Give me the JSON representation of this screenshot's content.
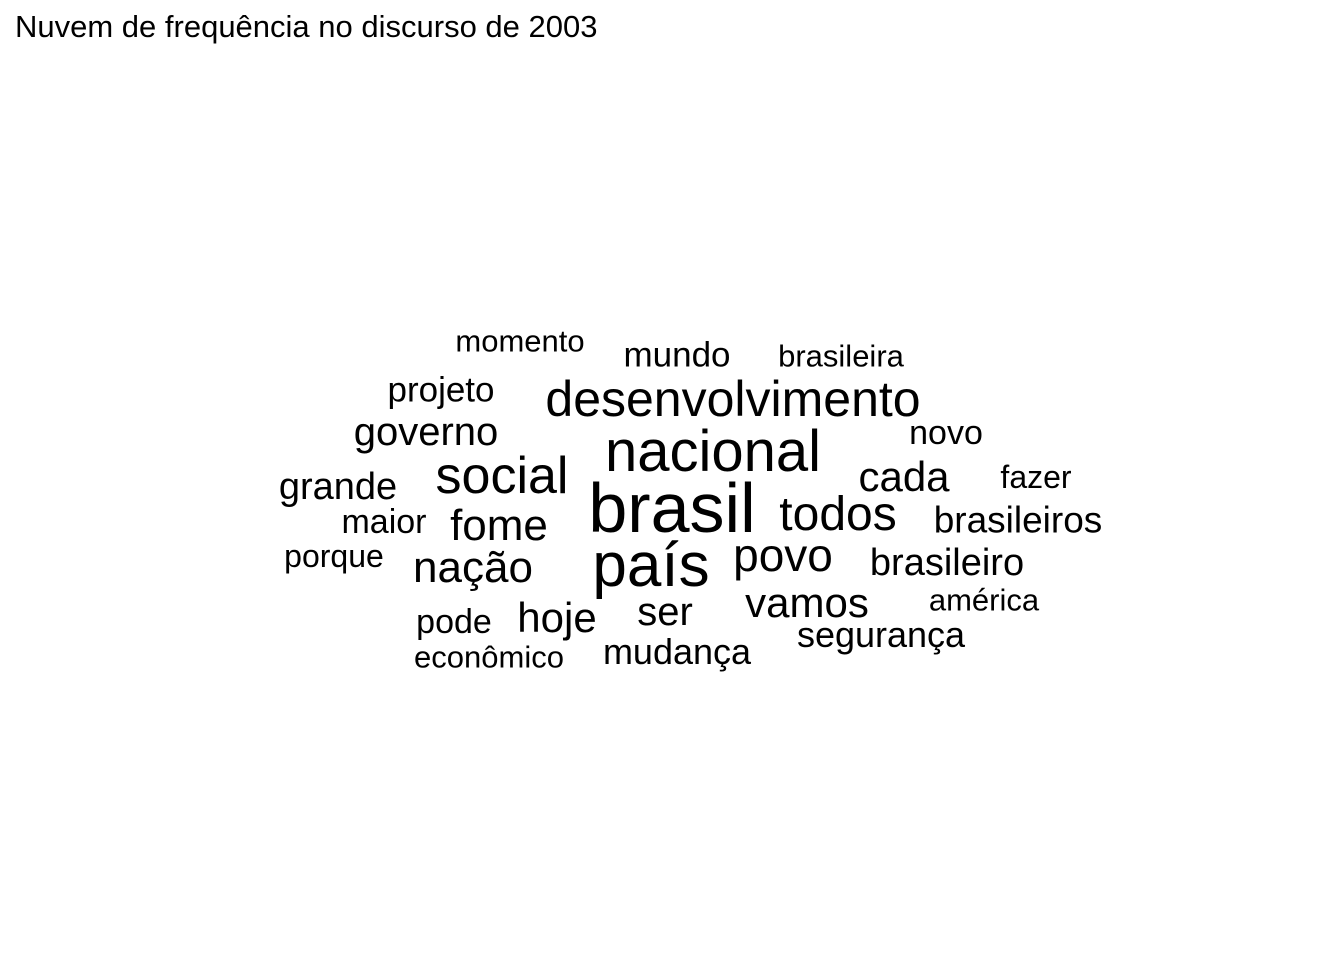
{
  "chart_data": {
    "type": "wordcloud",
    "title": "Nuvem de frequência no discurso de 2003",
    "words": [
      {
        "text": "brasil",
        "weight": 10
      },
      {
        "text": "país",
        "weight": 9
      },
      {
        "text": "nacional",
        "weight": 8
      },
      {
        "text": "social",
        "weight": 7
      },
      {
        "text": "desenvolvimento",
        "weight": 7
      },
      {
        "text": "todos",
        "weight": 7
      },
      {
        "text": "povo",
        "weight": 6
      },
      {
        "text": "nação",
        "weight": 6
      },
      {
        "text": "fome",
        "weight": 6
      },
      {
        "text": "cada",
        "weight": 6
      },
      {
        "text": "hoje",
        "weight": 5
      },
      {
        "text": "vamos",
        "weight": 5
      },
      {
        "text": "ser",
        "weight": 5
      },
      {
        "text": "governo",
        "weight": 5
      },
      {
        "text": "brasileiro",
        "weight": 5
      },
      {
        "text": "brasileiros",
        "weight": 5
      },
      {
        "text": "grande",
        "weight": 5
      },
      {
        "text": "mudança",
        "weight": 4
      },
      {
        "text": "segurança",
        "weight": 4
      },
      {
        "text": "projeto",
        "weight": 4
      },
      {
        "text": "mundo",
        "weight": 4
      },
      {
        "text": "novo",
        "weight": 4
      },
      {
        "text": "maior",
        "weight": 4
      },
      {
        "text": "pode",
        "weight": 4
      },
      {
        "text": "fazer",
        "weight": 4
      },
      {
        "text": "brasileira",
        "weight": 3
      },
      {
        "text": "momento",
        "weight": 3
      },
      {
        "text": "américa",
        "weight": 3
      },
      {
        "text": "porque",
        "weight": 3
      },
      {
        "text": "econômico",
        "weight": 3
      }
    ]
  }
}
